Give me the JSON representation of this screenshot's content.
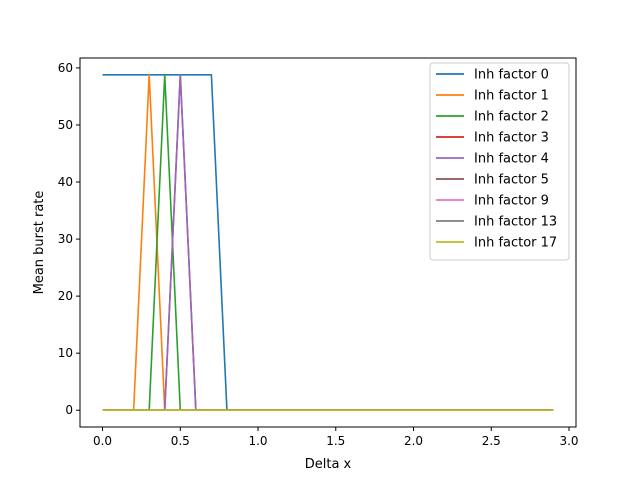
{
  "chart_data": {
    "type": "line",
    "xlabel": "Delta x",
    "ylabel": "Mean burst rate",
    "xlim": [
      -0.145,
      3.045
    ],
    "ylim": [
      -2.94,
      61.74
    ],
    "xticks": [
      0.0,
      0.5,
      1.0,
      1.5,
      2.0,
      2.5,
      3.0
    ],
    "xtick_labels": [
      "0.0",
      "0.5",
      "1.0",
      "1.5",
      "2.0",
      "2.5",
      "3.0"
    ],
    "yticks": [
      0,
      10,
      20,
      30,
      40,
      50,
      60
    ],
    "ytick_labels": [
      "0",
      "10",
      "20",
      "30",
      "40",
      "50",
      "60"
    ],
    "grid": false,
    "legend_position": "top-right",
    "series": [
      {
        "name": "Inh factor 0",
        "color": "#1f77b4",
        "x": [
          0.0,
          0.7,
          0.8,
          2.9
        ],
        "y": [
          58.8,
          58.8,
          0,
          0
        ]
      },
      {
        "name": "Inh factor 1",
        "color": "#ff7f0e",
        "x": [
          0.0,
          0.2,
          0.3,
          0.4,
          2.9
        ],
        "y": [
          0,
          0,
          58.8,
          0,
          0
        ]
      },
      {
        "name": "Inh factor 2",
        "color": "#2ca02c",
        "x": [
          0.0,
          0.3,
          0.4,
          0.5,
          2.9
        ],
        "y": [
          0,
          0,
          58.8,
          0,
          0
        ]
      },
      {
        "name": "Inh factor 3",
        "color": "#d62728",
        "x": [
          0.0,
          0.4,
          0.5,
          0.6,
          2.9
        ],
        "y": [
          0,
          0,
          58.8,
          0,
          0
        ]
      },
      {
        "name": "Inh factor 4",
        "color": "#9467bd",
        "x": [
          0.0,
          0.4,
          0.5,
          0.6,
          2.9
        ],
        "y": [
          0,
          0,
          58.8,
          0,
          0
        ]
      },
      {
        "name": "Inh factor 5",
        "color": "#8c564b",
        "x": [
          0.0,
          2.9
        ],
        "y": [
          0,
          0
        ]
      },
      {
        "name": "Inh factor 9",
        "color": "#e377c2",
        "x": [
          0.0,
          2.9
        ],
        "y": [
          0,
          0
        ]
      },
      {
        "name": "Inh factor 13",
        "color": "#7f7f7f",
        "x": [
          0.0,
          2.9
        ],
        "y": [
          0,
          0
        ]
      },
      {
        "name": "Inh factor 17",
        "color": "#bcbd22",
        "x": [
          0.0,
          2.9
        ],
        "y": [
          0,
          0
        ]
      }
    ]
  }
}
